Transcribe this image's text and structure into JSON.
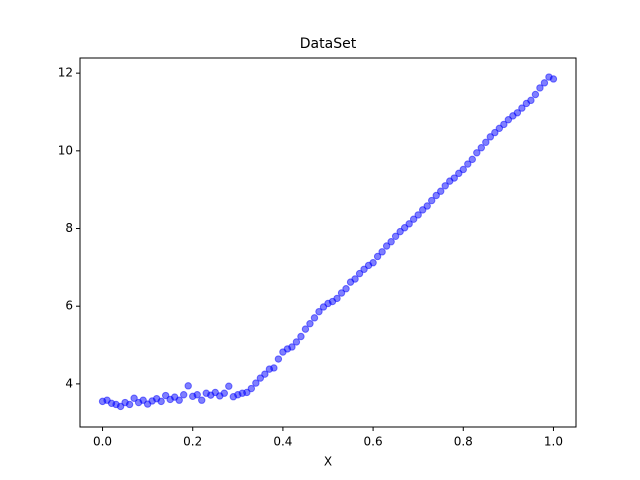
{
  "chart_data": {
    "type": "scatter",
    "title": "DataSet",
    "x_label": "X",
    "color": "#0000ff",
    "alpha": 0.5,
    "xlim": [
      -0.05,
      1.05
    ],
    "ylim": [
      2.89,
      12.39
    ],
    "xticks": [
      {
        "value": 0,
        "label": "0.0"
      },
      0.2,
      0.4,
      0.6,
      0.8,
      {
        "value": 1,
        "label": "1.0"
      }
    ],
    "yticks": [
      4,
      6,
      8,
      10,
      12
    ],
    "x": [
      0.0,
      0.01,
      0.02,
      0.03,
      0.04,
      0.05,
      0.06,
      0.07,
      0.08,
      0.09,
      0.1,
      0.11,
      0.12,
      0.13,
      0.14,
      0.15,
      0.16,
      0.17,
      0.18,
      0.19,
      0.2,
      0.21,
      0.22,
      0.23,
      0.24,
      0.25,
      0.26,
      0.27,
      0.28,
      0.29,
      0.3,
      0.31,
      0.32,
      0.33,
      0.34,
      0.35,
      0.36,
      0.37,
      0.38,
      0.39,
      0.4,
      0.41,
      0.42,
      0.43,
      0.44,
      0.45,
      0.46,
      0.47,
      0.48,
      0.49,
      0.5,
      0.51,
      0.52,
      0.53,
      0.54,
      0.55,
      0.56,
      0.57,
      0.58,
      0.59,
      0.6,
      0.61,
      0.62,
      0.63,
      0.64,
      0.65,
      0.66,
      0.67,
      0.68,
      0.69,
      0.7,
      0.71,
      0.72,
      0.73,
      0.74,
      0.75,
      0.76,
      0.77,
      0.78,
      0.79,
      0.8,
      0.81,
      0.82,
      0.83,
      0.84,
      0.85,
      0.86,
      0.87,
      0.88,
      0.89,
      0.9,
      0.91,
      0.92,
      0.93,
      0.94,
      0.95,
      0.96,
      0.97,
      0.98,
      0.99,
      1.0
    ],
    "values": [
      3.55,
      3.58,
      3.5,
      3.47,
      3.42,
      3.52,
      3.47,
      3.63,
      3.52,
      3.58,
      3.48,
      3.56,
      3.62,
      3.55,
      3.7,
      3.6,
      3.66,
      3.58,
      3.72,
      3.95,
      3.68,
      3.72,
      3.58,
      3.76,
      3.71,
      3.78,
      3.69,
      3.76,
      3.94,
      3.67,
      3.72,
      3.76,
      3.78,
      3.88,
      4.02,
      4.15,
      4.25,
      4.38,
      4.41,
      4.64,
      4.82,
      4.9,
      4.95,
      5.08,
      5.22,
      5.41,
      5.55,
      5.7,
      5.86,
      5.98,
      6.07,
      6.12,
      6.2,
      6.34,
      6.45,
      6.62,
      6.7,
      6.84,
      6.95,
      7.05,
      7.12,
      7.28,
      7.4,
      7.55,
      7.66,
      7.8,
      7.92,
      8.02,
      8.12,
      8.24,
      8.35,
      8.48,
      8.58,
      8.72,
      8.85,
      8.96,
      9.1,
      9.22,
      9.3,
      9.42,
      9.52,
      9.66,
      9.78,
      9.95,
      10.08,
      10.22,
      10.36,
      10.47,
      10.58,
      10.68,
      10.8,
      10.9,
      10.98,
      11.1,
      11.22,
      11.3,
      11.45,
      11.62,
      11.75,
      11.9,
      11.85
    ]
  }
}
